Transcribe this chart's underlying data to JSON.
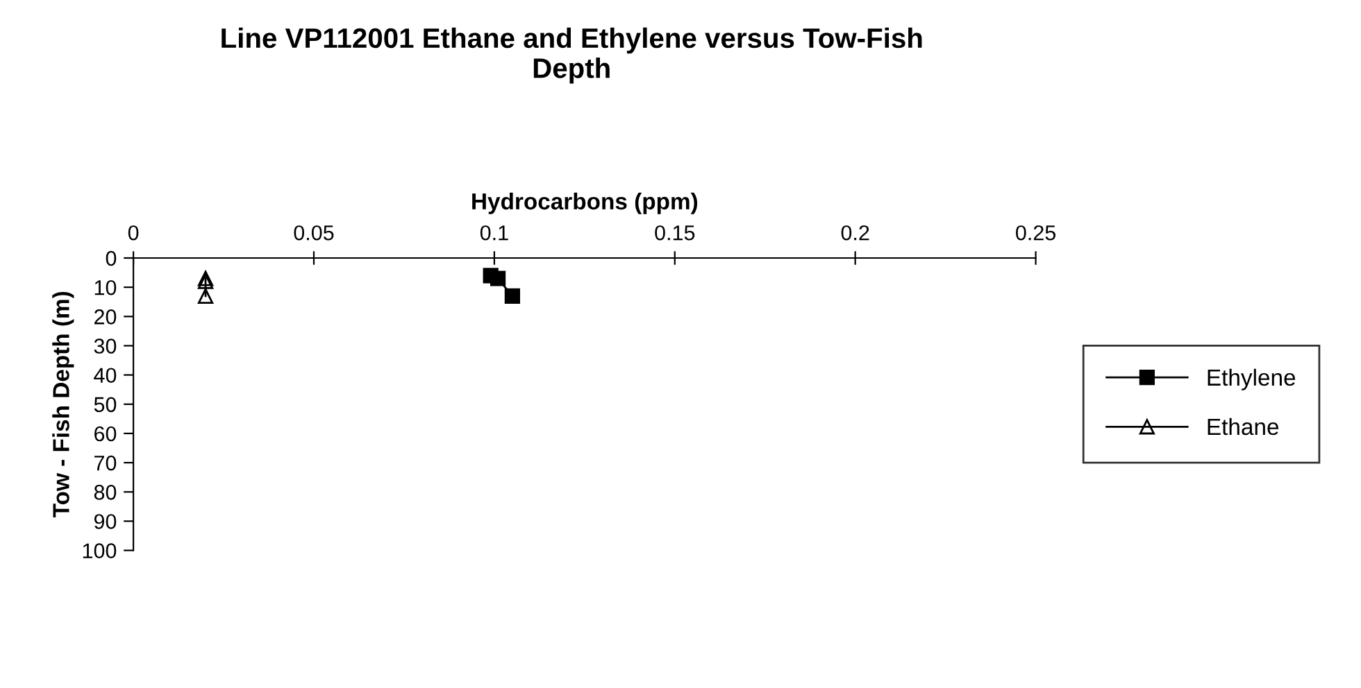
{
  "chart_data": {
    "type": "line",
    "title": "Line VP112001 Ethane and Ethylene versus Tow-Fish\nDepth",
    "xlabel": "Hydrocarbons (ppm)",
    "ylabel": "Tow - Fish Depth (m)",
    "xlim": [
      0,
      0.25
    ],
    "xticks": [
      0,
      0.05,
      0.1,
      0.15,
      0.2,
      0.25
    ],
    "ylim": [
      100,
      0
    ],
    "yticks": [
      0,
      10,
      20,
      30,
      40,
      50,
      60,
      70,
      80,
      90,
      100
    ],
    "grid": false,
    "legend": "right",
    "series": [
      {
        "name": "Ethylene",
        "color": "#000000",
        "marker": "square",
        "x": [
          0.099,
          0.101,
          0.105
        ],
        "values": [
          6,
          7,
          13
        ]
      },
      {
        "name": "Ethane",
        "color": "#000000",
        "marker": "triangle",
        "x": [
          0.02,
          0.02,
          0.02
        ],
        "values": [
          7,
          8,
          13
        ]
      }
    ]
  }
}
